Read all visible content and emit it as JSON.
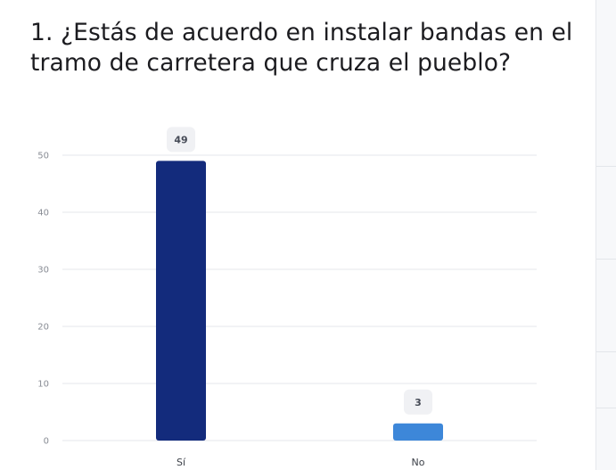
{
  "question": {
    "title": "1. ¿Estás de acuerdo en instalar bandas en el tramo de carretera que cruza el pueblo?"
  },
  "chart_data": {
    "type": "bar",
    "title": "1. ¿Estás de acuerdo en instalar bandas en el tramo de carretera que cruza el pueblo?",
    "categories": [
      "Sí",
      "No"
    ],
    "values": [
      49,
      3
    ],
    "colors": [
      "#132b7c",
      "#3d87d9"
    ],
    "ylim": [
      0,
      50
    ],
    "yticks": [
      0,
      10,
      20,
      30,
      40,
      50
    ],
    "grid": true,
    "xlabel": "",
    "ylabel": ""
  }
}
